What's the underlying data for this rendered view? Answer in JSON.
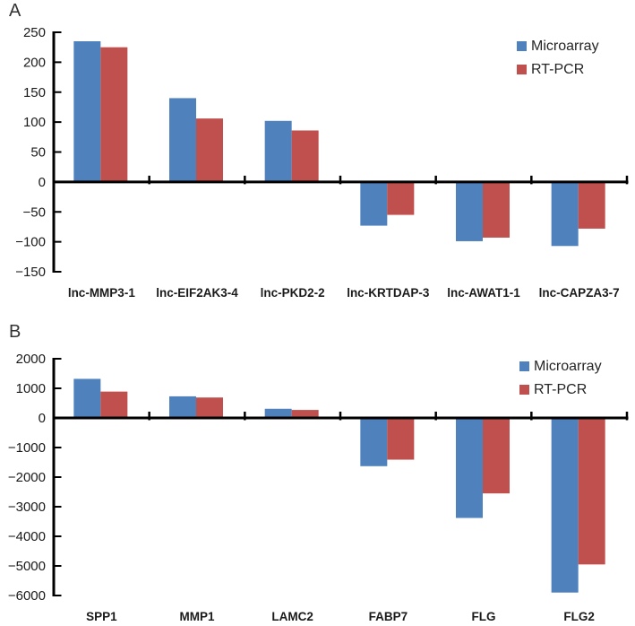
{
  "figure": {
    "panel_a_letter": "A",
    "panel_b_letter": "B",
    "legend": {
      "microarray_label": "Microarray",
      "rtpcr_label": "RT-PCR"
    },
    "colors": {
      "microarray": "#4F81BD",
      "rtpcr": "#C0504D",
      "axis": "#000000",
      "text": "#1a1a1a"
    }
  },
  "chart_data": [
    {
      "type": "bar",
      "panel": "A",
      "title": "",
      "xlabel": "",
      "ylabel": "",
      "categories": [
        "lnc-MMP3-1",
        "lnc-EIF2AK3-4",
        "lnc-PKD2-2",
        "lnc-KRTDAP-3",
        "lnc-AWAT1-1",
        "lnc-CAPZA3-7"
      ],
      "series": [
        {
          "name": "Microarray",
          "color": "#4F81BD",
          "values": [
            235,
            140,
            102,
            -73,
            -99,
            -107
          ]
        },
        {
          "name": "RT-PCR",
          "color": "#C0504D",
          "values": [
            225,
            106,
            86,
            -55,
            -93,
            -78
          ]
        }
      ],
      "ylim": [
        -150,
        250
      ],
      "yticks": [
        250,
        200,
        150,
        100,
        50,
        0,
        -50,
        -100,
        -150
      ],
      "grid": false,
      "legend_position": "top-right"
    },
    {
      "type": "bar",
      "panel": "B",
      "title": "",
      "xlabel": "",
      "ylabel": "",
      "categories": [
        "SPP1",
        "MMP1",
        "LAMC2",
        "FABP7",
        "FLG",
        "FLG2"
      ],
      "series": [
        {
          "name": "Microarray",
          "color": "#4F81BD",
          "values": [
            1320,
            730,
            310,
            -1630,
            -3380,
            -5900
          ]
        },
        {
          "name": "RT-PCR",
          "color": "#C0504D",
          "values": [
            890,
            690,
            270,
            -1410,
            -2550,
            -4950
          ]
        }
      ],
      "ylim": [
        -6000,
        2000
      ],
      "yticks": [
        2000,
        1000,
        0,
        -1000,
        -2000,
        -3000,
        -4000,
        -5000,
        -6000
      ],
      "grid": false,
      "legend_position": "top-right"
    }
  ]
}
